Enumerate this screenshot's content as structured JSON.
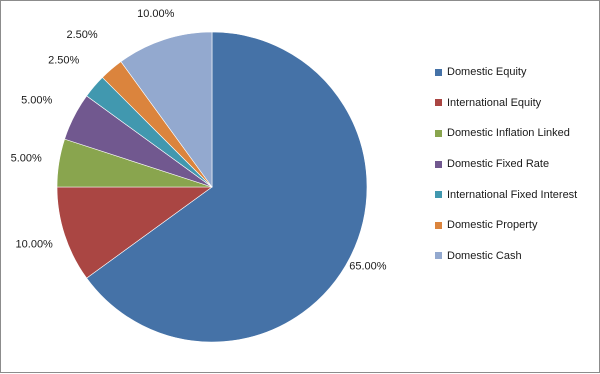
{
  "chart_data": {
    "type": "pie",
    "title": "",
    "categories": [
      "Domestic Equity",
      "International Equity",
      "Domestic Inflation Linked",
      "Domestic Fixed Rate",
      "International Fixed Interest",
      "Domestic Property",
      "Domestic Cash"
    ],
    "values": [
      65,
      10,
      5,
      5,
      2.5,
      2.5,
      10
    ],
    "data_labels": [
      "65.00%",
      "10.00%",
      "5.00%",
      "5.00%",
      "2.50%",
      "2.50%",
      "10.00%"
    ],
    "colors": [
      "#4572A7",
      "#AA4643",
      "#89A54E",
      "#71588F",
      "#4198AF",
      "#DB843D",
      "#93A9CF"
    ],
    "legend_position": "right"
  }
}
